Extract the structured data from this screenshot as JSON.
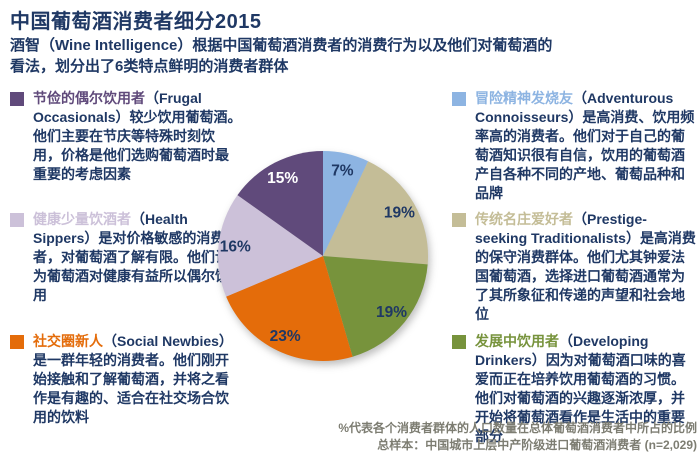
{
  "header": {
    "title": "中国葡萄酒消费者细分2015",
    "subtitle_line1": "酒智（Wine Intelligence）根据中国葡萄酒消费者的消费行为以及他们对葡萄酒的",
    "subtitle_line2": "看法，划分出了6类特点鲜明的消费者群体"
  },
  "colors": {
    "body_text": "#1F3864",
    "footnote_text": "#7D7D72",
    "background": "#FFFFFF"
  },
  "segments": [
    {
      "name_cn": "节俭的偶尔饮用者",
      "name_en": "（Frugal Occasionals）",
      "desc": "较少饮用葡萄酒。他们主要在节庆等特殊时刻饮用，价格是他们选购葡萄酒时最重要的考虑因素",
      "color": "#604A7B",
      "value_pct": "15%"
    },
    {
      "name_cn": "健康少量饮酒者",
      "name_en": "（Health Sippers）",
      "desc": "是对价格敏感的消费者，对葡萄酒了解有限。他们认为葡萄酒对健康有益所以偶尔饮用",
      "color": "#CCC1D9",
      "value_pct": "16%"
    },
    {
      "name_cn": "社交圈新人",
      "name_en": "（Social Newbies）",
      "desc": "是一群年轻的消费者。他们刚开始接触和了解葡萄酒，并将之看作是有趣的、适合在社交场合饮用的饮料",
      "color": "#E46C0A",
      "value_pct": "23%"
    },
    {
      "name_cn": "冒险精神发烧友",
      "name_en": "（Adventurous Connoisseurs）",
      "desc": "是高消费、饮用频率高的消费者。他们对于自己的葡萄酒知识很有自信，饮用的葡萄酒产自各种不同的产地、葡萄品种和品牌",
      "color": "#8DB4E2",
      "value_pct": "7%"
    },
    {
      "name_cn": "传统名庄爱好者",
      "name_en": "（Prestige-seeking Traditionalists）",
      "desc": "是高消费的保守消费群体。他们尤其钟爱法国葡萄酒，选择进口葡萄酒通常为了其所象征和传递的声望和社会地位",
      "color": "#C4BD97",
      "value_pct": "19%"
    },
    {
      "name_cn": "发展中饮用者",
      "name_en": "（Developing Drinkers）",
      "desc": "因为对葡萄酒口味的喜爱而正在培养饮用葡萄酒的习惯。他们对葡萄酒的兴趣逐渐浓厚，并开始将葡萄酒看作是生活中的重要部分",
      "color": "#77933C",
      "value_pct": "19%"
    }
  ],
  "chart_data": {
    "type": "pie",
    "title": "中国葡萄酒消费者细分2015",
    "categories": [
      "冒险精神发烧友 (Adventurous Connoisseurs)",
      "传统名庄爱好者 (Prestige-seeking Traditionalists)",
      "发展中饮用者 (Developing Drinkers)",
      "社交圈新人 (Social Newbies)",
      "健康少量饮酒者 (Health Sippers)",
      "节俭的偶尔饮用者 (Frugal Occasionals)"
    ],
    "values": [
      7,
      19,
      19,
      23,
      16,
      15
    ],
    "labels": [
      "7%",
      "19%",
      "19%",
      "23%",
      "16%",
      "15%"
    ],
    "colors": [
      "#8DB4E2",
      "#C4BD97",
      "#77933C",
      "#E46C0A",
      "#CCC1D9",
      "#604A7B"
    ],
    "label_colors": [
      "#1F3864",
      "#1F3864",
      "#1F3864",
      "#1F3864",
      "#1F3864",
      "#FFFFFF"
    ],
    "start_angle_deg": 0,
    "direction": "clockwise",
    "legend_position": "none"
  },
  "footnote": {
    "line1": "%代表各个消费者群体的人口数量在总体葡萄酒消费者中所占的比例",
    "line2": "总样本：中国城市上层中产阶级进口葡萄酒消费者 (n=2,029)"
  }
}
